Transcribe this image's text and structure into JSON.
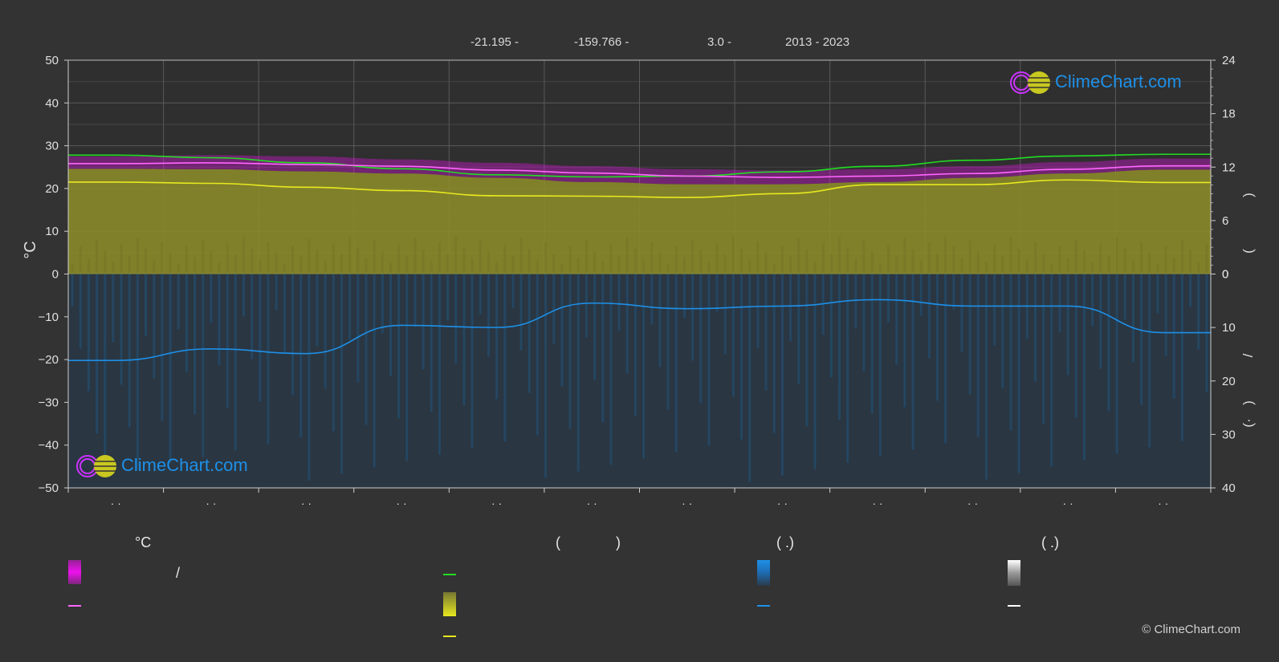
{
  "header": {
    "lat": "-21.195 -",
    "lon": "-159.766 -",
    "elev": "3.0 -",
    "years": "2013 - 2023"
  },
  "brand": "ClimeChart.com",
  "copyright": "© ClimeChart.com",
  "legend": {
    "col1_head": "°C",
    "col1_slash": "/",
    "col2_head_open": "(",
    "col2_head_close": ")",
    "col3_head": "(   .)",
    "col4_head": "(   .)"
  },
  "colors": {
    "background": "#333333",
    "daylight": "#22dd22",
    "sunshine": "#e8e820",
    "temp_mean": "#ff66ff",
    "temp_range": "#ee11ee",
    "precip": "#1e90e8",
    "snow": "#ffffff"
  },
  "chart_data": {
    "type": "line",
    "left_axis": {
      "label": "°C",
      "ylim": [
        -50,
        50
      ],
      "ticks": [
        50,
        40,
        30,
        20,
        10,
        0,
        -10,
        -20,
        -30,
        -40,
        -50
      ]
    },
    "right_axis_top": {
      "ticks": [
        24,
        18,
        12,
        6,
        0
      ],
      "ylim": [
        0,
        24
      ]
    },
    "right_axis_bottom": {
      "ticks": [
        0,
        10,
        20,
        30,
        40
      ],
      "ylim": [
        0,
        40
      ]
    },
    "right_axis_label_glyphs": [
      ")",
      "(",
      "/",
      ")",
      "(·"
    ],
    "x": [
      0,
      1,
      2,
      3,
      4,
      5,
      6,
      7,
      8,
      9,
      10,
      11
    ],
    "x_tick_labels": [
      "· ·",
      "· ·",
      "· ·",
      "· ·",
      "· ·",
      "· ·",
      "· ·",
      "· ·",
      "· ·",
      "· ·",
      "· ·",
      "· ·"
    ],
    "series": [
      {
        "key": "daylight",
        "axis": "left",
        "values": [
          27.8,
          27.2,
          26.0,
          24.6,
          23.2,
          22.7,
          22.9,
          23.9,
          25.2,
          26.6,
          27.6,
          28.0
        ]
      },
      {
        "key": "temp_mean",
        "axis": "left",
        "values": [
          25.8,
          26.0,
          25.6,
          25.2,
          24.3,
          23.6,
          22.9,
          22.6,
          22.9,
          23.5,
          24.5,
          25.3
        ]
      },
      {
        "key": "temp_range_hi",
        "axis": "left",
        "values": [
          27.5,
          27.8,
          27.5,
          26.8,
          26.0,
          25.2,
          24.5,
          24.2,
          24.5,
          25.2,
          26.2,
          27.0
        ]
      },
      {
        "key": "temp_range_lo",
        "axis": "left",
        "values": [
          24.6,
          24.5,
          24.0,
          23.5,
          22.5,
          21.5,
          21.0,
          21.0,
          21.5,
          22.5,
          23.5,
          24.4
        ]
      },
      {
        "key": "sunshine",
        "axis": "left",
        "values": [
          21.5,
          21.2,
          20.3,
          19.5,
          18.3,
          18.2,
          17.9,
          18.8,
          20.9,
          20.9,
          22.0,
          21.4
        ]
      },
      {
        "key": "precip",
        "axis": "left",
        "values": [
          -20.2,
          -17.5,
          -18.6,
          -12.0,
          -12.5,
          -6.8,
          -8.1,
          -7.5,
          -6.0,
          -7.5,
          -7.5,
          -13.7
        ]
      }
    ]
  }
}
